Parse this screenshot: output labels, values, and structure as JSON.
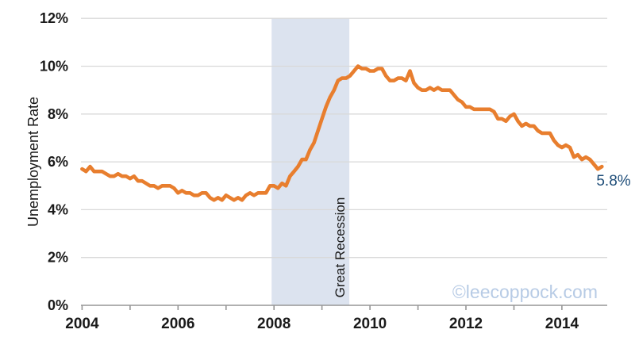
{
  "watermark": {
    "text": "©leecoppock.com",
    "color": "#B7CBE5"
  },
  "chart_data": {
    "type": "line",
    "title": "",
    "xlabel": "",
    "ylabel": "Unemployment Rate",
    "ylim": [
      0,
      12
    ],
    "xlim": [
      2004,
      2014.95
    ],
    "grid": true,
    "legend_position": "none",
    "grid_color": "#D9D9D9",
    "axis_color": "#969696",
    "tick_label_color": "#1a1a1a",
    "y_tick_values": [
      0,
      2,
      4,
      6,
      8,
      10,
      12
    ],
    "y_tick_labels": [
      "0%",
      "2%",
      "4%",
      "6%",
      "8%",
      "10%",
      "12%"
    ],
    "x_tick_values": [
      2004,
      2006,
      2008,
      2010,
      2012,
      2014
    ],
    "x_tick_labels": [
      "2004",
      "2006",
      "2008",
      "2010",
      "2012",
      "2014"
    ],
    "x_minor_tick_values": [
      2004,
      2005,
      2006,
      2007,
      2008,
      2009,
      2010,
      2011,
      2012,
      2013,
      2014
    ],
    "series": [
      {
        "name": "Unemployment Rate",
        "color": "#E87E2E",
        "frequency": "monthly",
        "start_year": 2004,
        "values": [
          5.7,
          5.6,
          5.8,
          5.6,
          5.6,
          5.6,
          5.5,
          5.4,
          5.4,
          5.5,
          5.4,
          5.4,
          5.3,
          5.4,
          5.2,
          5.2,
          5.1,
          5.0,
          5.0,
          4.9,
          5.0,
          5.0,
          5.0,
          4.9,
          4.7,
          4.8,
          4.7,
          4.7,
          4.6,
          4.6,
          4.7,
          4.7,
          4.5,
          4.4,
          4.5,
          4.4,
          4.6,
          4.5,
          4.4,
          4.5,
          4.4,
          4.6,
          4.7,
          4.6,
          4.7,
          4.7,
          4.7,
          5.0,
          5.0,
          4.9,
          5.1,
          5.0,
          5.4,
          5.6,
          5.8,
          6.1,
          6.1,
          6.5,
          6.8,
          7.3,
          7.8,
          8.3,
          8.7,
          9.0,
          9.4,
          9.5,
          9.5,
          9.6,
          9.8,
          10.0,
          9.9,
          9.9,
          9.8,
          9.8,
          9.9,
          9.9,
          9.6,
          9.4,
          9.4,
          9.5,
          9.5,
          9.4,
          9.8,
          9.3,
          9.1,
          9.0,
          9.0,
          9.1,
          9.0,
          9.1,
          9.0,
          9.0,
          9.0,
          8.8,
          8.6,
          8.5,
          8.3,
          8.3,
          8.2,
          8.2,
          8.2,
          8.2,
          8.2,
          8.1,
          7.8,
          7.8,
          7.7,
          7.9,
          8.0,
          7.7,
          7.5,
          7.6,
          7.5,
          7.5,
          7.3,
          7.2,
          7.2,
          7.2,
          6.9,
          6.7,
          6.6,
          6.7,
          6.6,
          6.2,
          6.3,
          6.1,
          6.2,
          6.1,
          5.9,
          5.7,
          5.8
        ]
      }
    ],
    "annotations": {
      "recession_band": {
        "label": "Great Recession",
        "x_start": 2007.95,
        "x_end": 2009.57,
        "color": "#DCE3EF",
        "label_color": "#1a1a1a"
      },
      "end_value_label": {
        "text": "5.8%",
        "x": 2014.833,
        "y": 5.8,
        "color": "#1F4E79"
      }
    }
  }
}
